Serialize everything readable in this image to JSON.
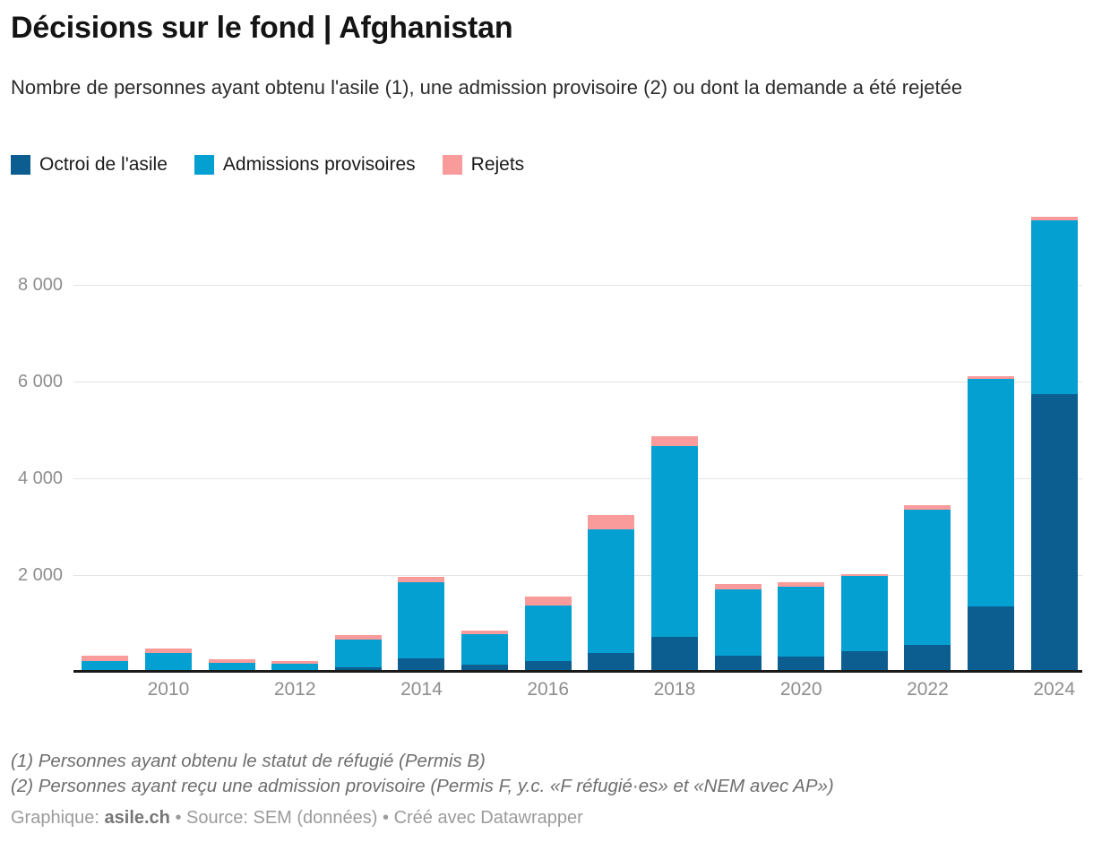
{
  "header": {
    "title": "Décisions sur le fond | Afghanistan",
    "subtitle": "Nombre de personnes ayant obtenu l'asile (1), une admission provisoire (2) ou dont la demande a été rejetée"
  },
  "chart_data": {
    "type": "bar",
    "stacked": true,
    "title": "Décisions sur le fond | Afghanistan",
    "categories": [
      2009,
      2010,
      2011,
      2012,
      2013,
      2014,
      2015,
      2016,
      2017,
      2018,
      2019,
      2020,
      2021,
      2022,
      2023,
      2024
    ],
    "series": [
      {
        "name": "Octroi de l'asile",
        "color": "#0b5e8f",
        "values": [
          15,
          15,
          10,
          10,
          90,
          280,
          155,
          220,
          390,
          725,
          340,
          320,
          420,
          555,
          1345,
          5740
        ]
      },
      {
        "name": "Admissions provisoires",
        "color": "#05a0d2",
        "values": [
          215,
          380,
          180,
          155,
          575,
          1565,
          620,
          1155,
          2560,
          3945,
          1370,
          1435,
          1555,
          2805,
          4705,
          3595
        ]
      },
      {
        "name": "Rejets",
        "color": "#f99b9a",
        "values": [
          110,
          85,
          75,
          65,
          95,
          125,
          80,
          185,
          290,
          205,
          105,
          105,
          45,
          80,
          60,
          75
        ]
      }
    ],
    "ylim": [
      0,
      9445
    ],
    "yticks": [
      2000,
      4000,
      6000,
      8000
    ],
    "ytick_labels": [
      "2 000",
      "4 000",
      "6 000",
      "8 000"
    ],
    "xtick_labels": [
      "2010",
      "2012",
      "2014",
      "2016",
      "2018",
      "2020",
      "2022",
      "2024"
    ],
    "xtick_indices": [
      1,
      3,
      5,
      7,
      9,
      11,
      13,
      15
    ],
    "grid": "horizontal",
    "legend_position": "top",
    "xlabel": "",
    "ylabel": ""
  },
  "footnotes": [
    "(1) Personnes ayant obtenu le statut de réfugié (Permis B)",
    "(2) Personnes ayant reçu une admission provisoire (Permis F, y.c. «F réfugié·es» et «NEM avec AP»)"
  ],
  "byline": {
    "prefix": "Graphique: ",
    "brand": "asile.ch",
    "suffix": " • Source: SEM (données) • Créé avec Datawrapper"
  }
}
